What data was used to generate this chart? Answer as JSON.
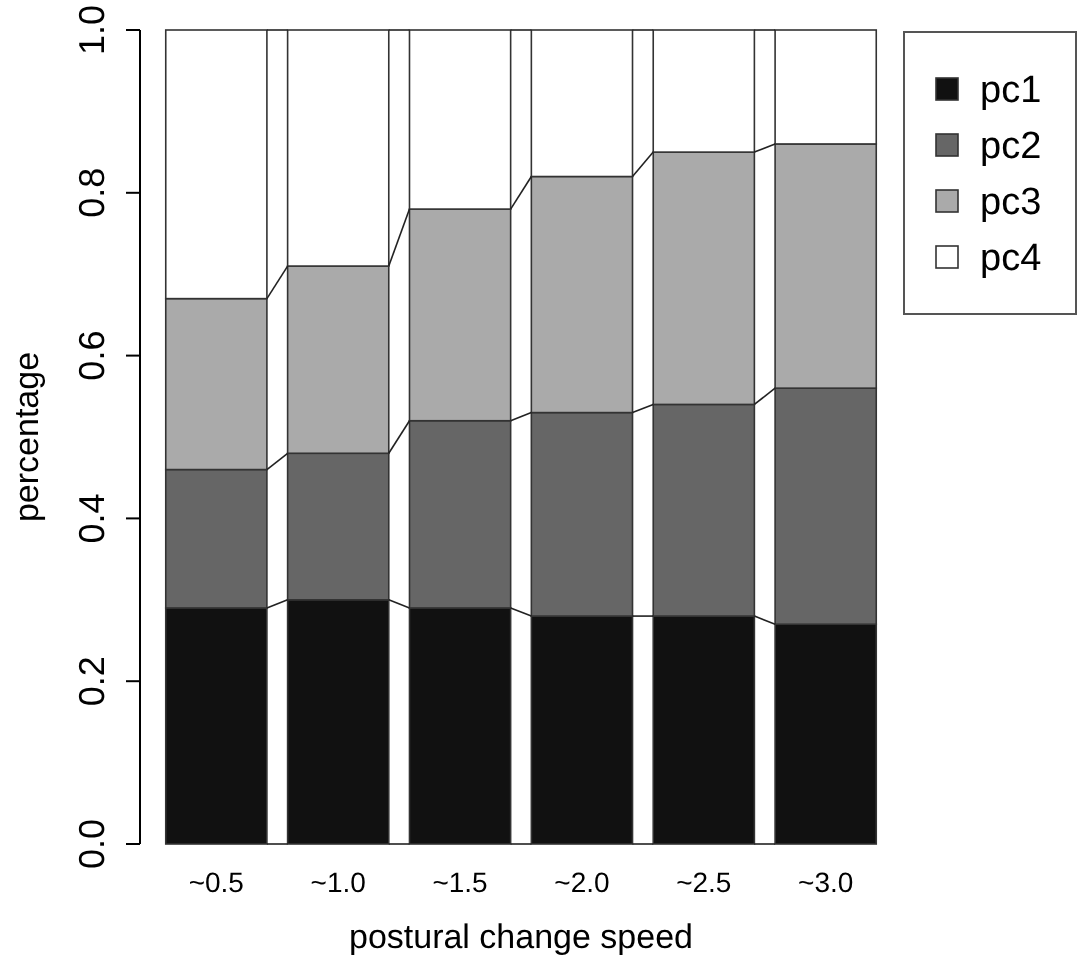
{
  "chart_data": {
    "type": "bar",
    "stacked": true,
    "xlabel": "postural change speed",
    "ylabel": "percentage",
    "categories": [
      "~0.5",
      "~1.0",
      "~1.5",
      "~2.0",
      "~2.5",
      "~3.0"
    ],
    "series": [
      {
        "name": "pc1",
        "color": "#111111",
        "values": [
          0.29,
          0.3,
          0.29,
          0.28,
          0.28,
          0.27
        ]
      },
      {
        "name": "pc2",
        "color": "#666666",
        "values": [
          0.17,
          0.18,
          0.23,
          0.25,
          0.26,
          0.29
        ]
      },
      {
        "name": "pc3",
        "color": "#aaaaaa",
        "values": [
          0.21,
          0.23,
          0.26,
          0.29,
          0.31,
          0.3
        ]
      },
      {
        "name": "pc4",
        "color": "#ffffff",
        "values": [
          0.33,
          0.29,
          0.22,
          0.18,
          0.15,
          0.14
        ]
      }
    ],
    "ylim": [
      0,
      1
    ],
    "yticks": [
      {
        "value": 0,
        "label": "0.0"
      },
      0.2,
      0.4,
      0.6,
      0.8,
      {
        "value": 1,
        "label": "1.0"
      }
    ],
    "legend": "top right",
    "grid": false
  }
}
